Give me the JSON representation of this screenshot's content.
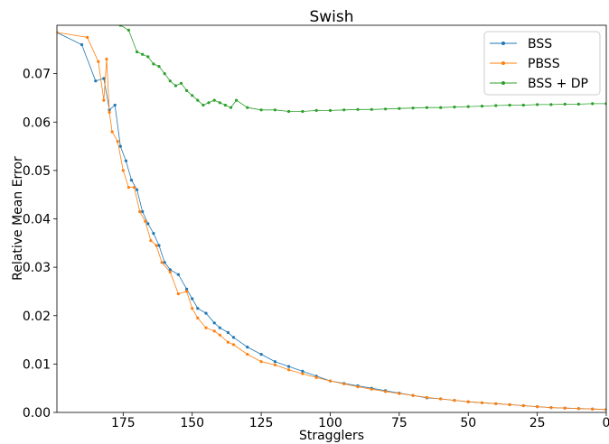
{
  "chart_data": {
    "type": "line",
    "title": "Swish",
    "xlabel": "Stragglers",
    "ylabel": "Relative Mean Error",
    "xlim": [
      199,
      0
    ],
    "ylim": [
      0.0,
      0.08
    ],
    "x_reversed": true,
    "grid": false,
    "legend_position": "top-right",
    "xticks": [
      175,
      150,
      125,
      100,
      75,
      50,
      25,
      0
    ],
    "xtick_labels": [
      "175",
      "150",
      "125",
      "100",
      "75",
      "50",
      "25",
      "0"
    ],
    "yticks": [
      0.0,
      0.01,
      0.02,
      0.03,
      0.04,
      0.05,
      0.06,
      0.07
    ],
    "ytick_labels": [
      "0.00",
      "0.01",
      "0.02",
      "0.03",
      "0.04",
      "0.05",
      "0.06",
      "0.07"
    ],
    "series": [
      {
        "name": "BSS",
        "color": "#1f77b4",
        "x": [
          199,
          190,
          185,
          182,
          180,
          178,
          176,
          174,
          172,
          170,
          168,
          166,
          164,
          162,
          160,
          158,
          155,
          152,
          150,
          148,
          145,
          142,
          140,
          137,
          135,
          130,
          125,
          120,
          115,
          110,
          105,
          100,
          95,
          90,
          85,
          80,
          75,
          70,
          65,
          60,
          55,
          50,
          45,
          40,
          35,
          30,
          25,
          20,
          15,
          10,
          5,
          0
        ],
        "y": [
          0.0785,
          0.076,
          0.0685,
          0.069,
          0.0625,
          0.0635,
          0.055,
          0.052,
          0.048,
          0.046,
          0.0415,
          0.039,
          0.037,
          0.0345,
          0.031,
          0.0295,
          0.0285,
          0.0255,
          0.0235,
          0.0215,
          0.0205,
          0.0185,
          0.0175,
          0.0165,
          0.0155,
          0.0135,
          0.012,
          0.0105,
          0.0095,
          0.0085,
          0.0075,
          0.0065,
          0.006,
          0.0055,
          0.005,
          0.0045,
          0.004,
          0.0035,
          0.003,
          0.0028,
          0.0025,
          0.0022,
          0.002,
          0.0018,
          0.0016,
          0.0014,
          0.0012,
          0.001,
          0.0009,
          0.0008,
          0.0007,
          0.0006
        ]
      },
      {
        "name": "PBSS",
        "color": "#ff7f0e",
        "x": [
          199,
          188,
          184,
          182,
          181,
          180,
          179,
          177,
          175,
          173,
          171,
          169,
          167,
          165,
          163,
          161,
          158,
          155,
          152,
          150,
          148,
          145,
          142,
          140,
          137,
          135,
          130,
          125,
          120,
          115,
          110,
          105,
          100,
          95,
          90,
          85,
          80,
          75,
          70,
          65,
          60,
          55,
          50,
          45,
          40,
          35,
          30,
          25,
          20,
          15,
          10,
          5,
          0
        ],
        "y": [
          0.0785,
          0.0775,
          0.0725,
          0.0645,
          0.073,
          0.062,
          0.058,
          0.056,
          0.05,
          0.0465,
          0.0465,
          0.0415,
          0.0395,
          0.0355,
          0.0345,
          0.031,
          0.029,
          0.0245,
          0.025,
          0.0215,
          0.0195,
          0.0175,
          0.0168,
          0.016,
          0.0145,
          0.014,
          0.012,
          0.0105,
          0.0098,
          0.0088,
          0.008,
          0.0072,
          0.0065,
          0.0059,
          0.0053,
          0.0048,
          0.0043,
          0.0039,
          0.0035,
          0.0031,
          0.0028,
          0.0025,
          0.0022,
          0.002,
          0.0018,
          0.0016,
          0.0014,
          0.0012,
          0.001,
          0.0009,
          0.0008,
          0.0007,
          0.0006
        ]
      },
      {
        "name": "BSS + DP",
        "color": "#2ca02c",
        "x": [
          176,
          173,
          170,
          168,
          166,
          164,
          162,
          160,
          158,
          156,
          154,
          152,
          150,
          148,
          146,
          144,
          142,
          140,
          138,
          136,
          134,
          130,
          125,
          120,
          115,
          110,
          105,
          100,
          95,
          90,
          85,
          80,
          75,
          70,
          65,
          60,
          55,
          50,
          45,
          40,
          35,
          30,
          25,
          20,
          15,
          10,
          5,
          0
        ],
        "y": [
          0.08,
          0.079,
          0.0745,
          0.074,
          0.0735,
          0.072,
          0.0715,
          0.07,
          0.0685,
          0.0675,
          0.068,
          0.0665,
          0.0655,
          0.0645,
          0.0635,
          0.064,
          0.0645,
          0.064,
          0.0635,
          0.063,
          0.0645,
          0.063,
          0.0625,
          0.0625,
          0.0622,
          0.0622,
          0.0624,
          0.0624,
          0.0625,
          0.0626,
          0.0626,
          0.0627,
          0.0628,
          0.0629,
          0.063,
          0.063,
          0.0631,
          0.0632,
          0.0633,
          0.0634,
          0.0635,
          0.0635,
          0.0636,
          0.0636,
          0.0637,
          0.0637,
          0.0638,
          0.0638
        ]
      }
    ]
  }
}
